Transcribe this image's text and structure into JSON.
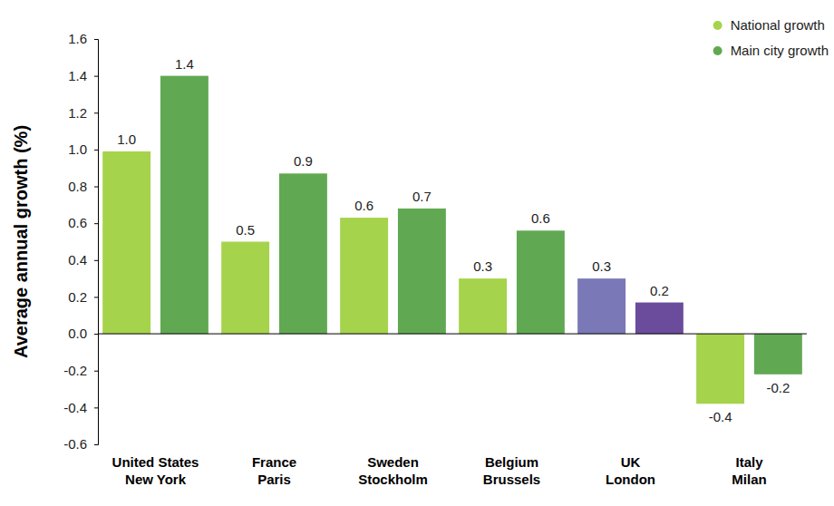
{
  "chart_data": {
    "type": "bar",
    "y_label": "Average annual growth (%)",
    "categories": [
      "United States\nNew York",
      "France\nParis",
      "Sweden\nStockholm",
      "Belgium\nBrussels",
      "UK\nLondon",
      "Italy\nMilan"
    ],
    "series": [
      {
        "name": "National growth",
        "color": "#a6d34c",
        "colors": [
          "#a6d34c",
          "#a6d34c",
          "#a6d34c",
          "#a6d34c",
          "#7a78b6",
          "#a6d34c"
        ],
        "values": [
          0.99,
          0.5,
          0.63,
          0.3,
          0.3,
          -0.38
        ],
        "value_labels": [
          "1.0",
          "0.5",
          "0.6",
          "0.3",
          "0.3",
          "-0.4"
        ]
      },
      {
        "name": "Main city growth",
        "color": "#61a852",
        "colors": [
          "#61a852",
          "#61a852",
          "#61a852",
          "#61a852",
          "#6a4b9c",
          "#61a852"
        ],
        "values": [
          1.4,
          0.87,
          0.68,
          0.56,
          0.17,
          -0.22
        ],
        "value_labels": [
          "1.4",
          "0.9",
          "0.7",
          "0.6",
          "0.2",
          "-0.2"
        ]
      }
    ],
    "ylim": [
      -0.6,
      1.6
    ],
    "yticks": [
      {
        "value": -0.6,
        "label": "-0.6"
      },
      {
        "value": -0.4,
        "label": "-0.4"
      },
      {
        "value": -0.2,
        "label": "-0.2"
      },
      {
        "value": 0,
        "label": "0.0"
      },
      {
        "value": 0.2,
        "label": "0.2"
      },
      {
        "value": 0.4,
        "label": "0.4"
      },
      {
        "value": 0.6,
        "label": "0.6"
      },
      {
        "value": 0.8,
        "label": "0.8"
      },
      {
        "value": 1,
        "label": "1.0"
      },
      {
        "value": 1.2,
        "label": "1.2"
      },
      {
        "value": 1.4,
        "label": "1.4"
      },
      {
        "value": 1.6,
        "label": "1.6"
      }
    ],
    "grid": false,
    "legend": "top-right",
    "data_labels": true
  }
}
